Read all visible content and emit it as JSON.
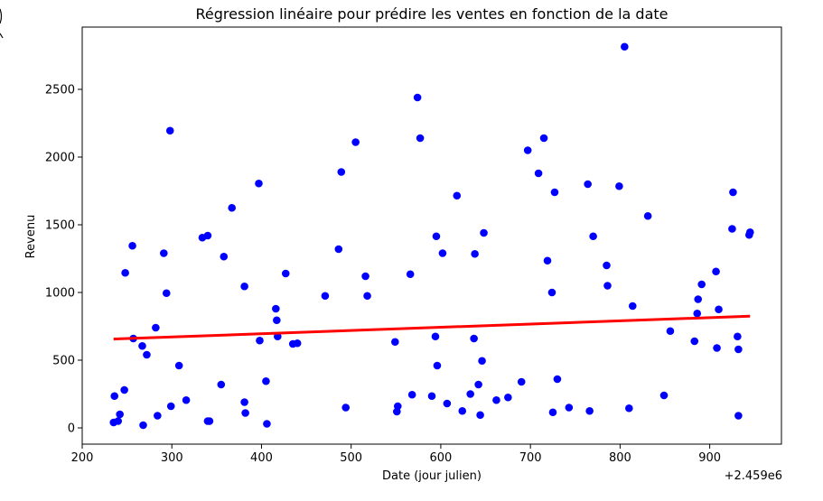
{
  "chart_data": {
    "type": "scatter",
    "title": "Régression linéaire pour prédire les ventes en fonction de la date",
    "xlabel": "Date (jour julien)",
    "ylabel": "Revenu",
    "x_offset_label": "+2.459e6",
    "xlim": [
      200,
      980
    ],
    "ylim": [
      -120,
      2960
    ],
    "x_ticks": [
      200,
      300,
      400,
      500,
      600,
      700,
      800,
      900
    ],
    "y_ticks": [
      0,
      500,
      1000,
      1500,
      2000,
      2500
    ],
    "grid": false,
    "legend": "none",
    "points": [
      [
        235,
        40
      ],
      [
        236,
        235
      ],
      [
        240,
        50
      ],
      [
        242,
        100
      ],
      [
        247,
        280
      ],
      [
        248,
        1145
      ],
      [
        256,
        1345
      ],
      [
        257,
        660
      ],
      [
        267,
        605
      ],
      [
        268,
        20
      ],
      [
        272,
        540
      ],
      [
        282,
        740
      ],
      [
        284,
        90
      ],
      [
        291,
        1290
      ],
      [
        294,
        995
      ],
      [
        298,
        2195
      ],
      [
        299,
        160
      ],
      [
        308,
        460
      ],
      [
        316,
        205
      ],
      [
        334,
        1405
      ],
      [
        340,
        1420
      ],
      [
        340,
        50
      ],
      [
        342,
        50
      ],
      [
        355,
        320
      ],
      [
        358,
        1265
      ],
      [
        367,
        1625
      ],
      [
        381,
        1045
      ],
      [
        381,
        190
      ],
      [
        382,
        110
      ],
      [
        397,
        1805
      ],
      [
        398,
        645
      ],
      [
        405,
        345
      ],
      [
        406,
        30
      ],
      [
        416,
        880
      ],
      [
        417,
        795
      ],
      [
        418,
        675
      ],
      [
        427,
        1140
      ],
      [
        435,
        620
      ],
      [
        440,
        625
      ],
      [
        471,
        975
      ],
      [
        486,
        1320
      ],
      [
        489,
        1890
      ],
      [
        494,
        150
      ],
      [
        505,
        2110
      ],
      [
        516,
        1120
      ],
      [
        518,
        975
      ],
      [
        549,
        635
      ],
      [
        551,
        120
      ],
      [
        552,
        160
      ],
      [
        566,
        1135
      ],
      [
        568,
        245
      ],
      [
        574,
        2440
      ],
      [
        577,
        2140
      ],
      [
        590,
        235
      ],
      [
        594,
        675
      ],
      [
        595,
        1415
      ],
      [
        596,
        460
      ],
      [
        602,
        1290
      ],
      [
        607,
        180
      ],
      [
        618,
        1715
      ],
      [
        624,
        125
      ],
      [
        633,
        250
      ],
      [
        637,
        660
      ],
      [
        638,
        1285
      ],
      [
        642,
        320
      ],
      [
        644,
        95
      ],
      [
        646,
        495
      ],
      [
        648,
        1440
      ],
      [
        662,
        205
      ],
      [
        675,
        225
      ],
      [
        690,
        340
      ],
      [
        697,
        2050
      ],
      [
        709,
        1880
      ],
      [
        715,
        2140
      ],
      [
        719,
        1235
      ],
      [
        724,
        1000
      ],
      [
        725,
        115
      ],
      [
        727,
        1740
      ],
      [
        730,
        360
      ],
      [
        743,
        150
      ],
      [
        764,
        1800
      ],
      [
        766,
        125
      ],
      [
        770,
        1415
      ],
      [
        785,
        1200
      ],
      [
        786,
        1050
      ],
      [
        799,
        1785
      ],
      [
        805,
        2815
      ],
      [
        810,
        145
      ],
      [
        814,
        900
      ],
      [
        831,
        1565
      ],
      [
        849,
        240
      ],
      [
        856,
        715
      ],
      [
        883,
        640
      ],
      [
        886,
        845
      ],
      [
        887,
        950
      ],
      [
        891,
        1060
      ],
      [
        907,
        1155
      ],
      [
        908,
        590
      ],
      [
        910,
        875
      ],
      [
        925,
        1470
      ],
      [
        926,
        1740
      ],
      [
        931,
        675
      ],
      [
        932,
        90
      ],
      [
        932,
        580
      ],
      [
        944,
        1425
      ],
      [
        945,
        1445
      ]
    ],
    "series": [
      {
        "kind": "scatter",
        "color": "#0000ff"
      },
      {
        "kind": "regression-line",
        "color": "#ff0000",
        "x": [
          235,
          945
        ],
        "y": [
          656,
          825
        ]
      }
    ]
  }
}
